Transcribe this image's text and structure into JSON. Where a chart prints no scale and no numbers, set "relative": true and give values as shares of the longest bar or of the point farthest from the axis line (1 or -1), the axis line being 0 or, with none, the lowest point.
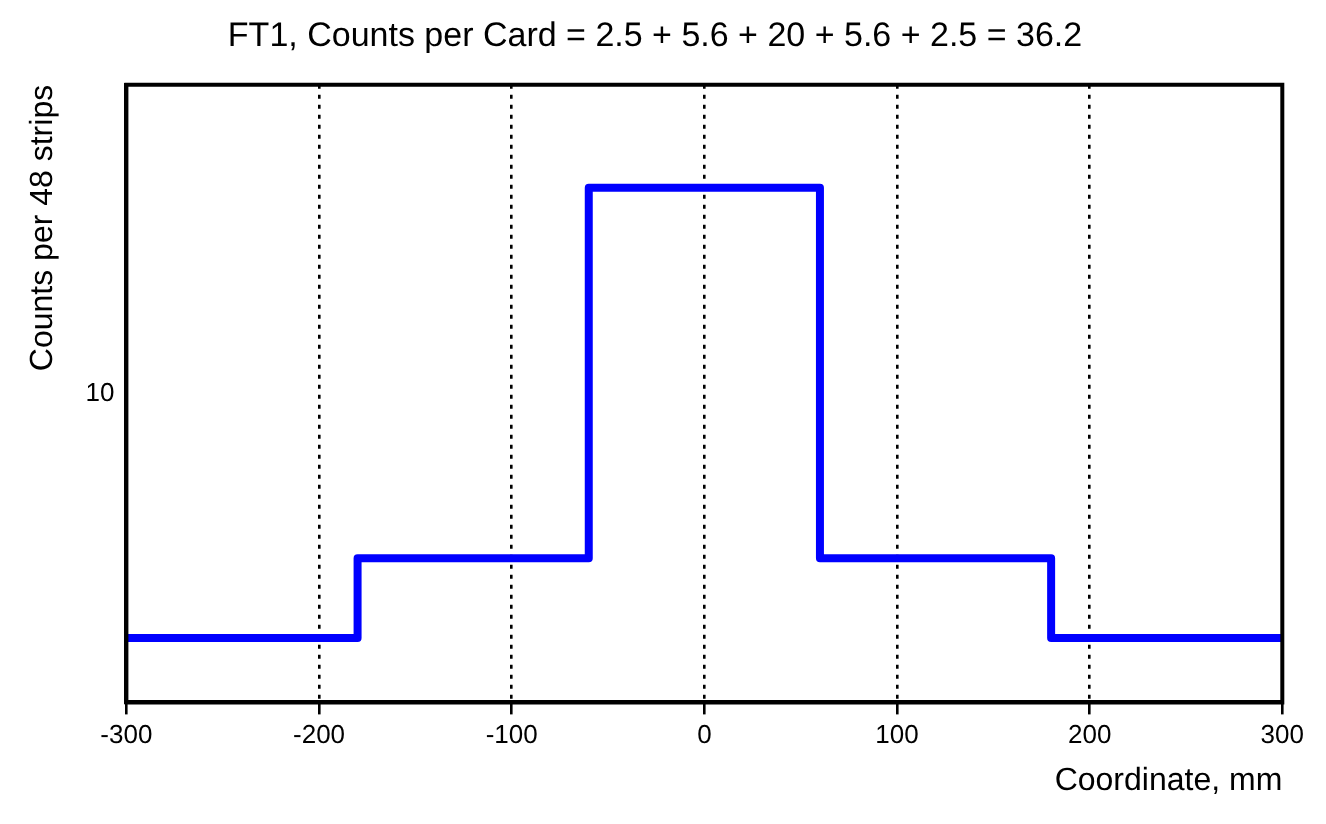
{
  "chart_data": {
    "type": "line",
    "title": "FT1, Counts per Card = 2.5 + 5.6 + 20 + 5.6 + 2.5 = 36.2",
    "xlabel": "Coordinate, mm",
    "ylabel": "Counts per 48 strips",
    "annotations": [
      "10"
    ],
    "x": [
      -300,
      -180,
      -180,
      -60,
      -60,
      60,
      60,
      180,
      180,
      300
    ],
    "values": [
      0.125,
      0.125,
      0.28,
      0.28,
      1,
      1,
      0.28,
      0.28,
      0.125,
      0.125
    ],
    "relative": true,
    "color": "#0000ff",
    "xlim": [
      -300,
      300
    ],
    "xticks": [
      -300,
      -200,
      -100,
      0,
      100,
      200,
      300
    ],
    "grid": "x"
  }
}
